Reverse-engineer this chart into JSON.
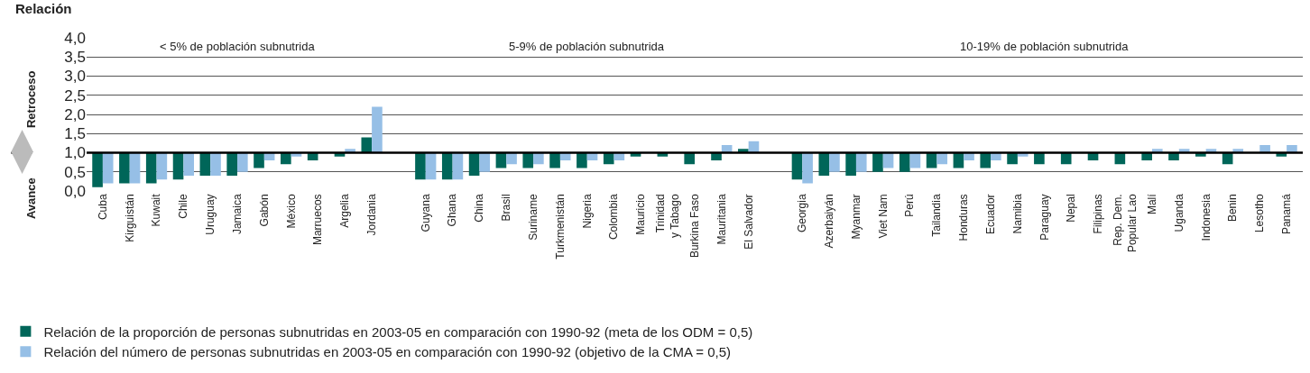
{
  "chart_data": {
    "type": "bar",
    "ylabel": "Relación",
    "categories": [
      "Cuba",
      "Kirguistán",
      "Kuwait",
      "Chile",
      "Uruguay",
      "Jamaica",
      "Gabón",
      "México",
      "Marruecos",
      "Argelia",
      "Jordania",
      null,
      "Guyana",
      "Ghana",
      "China",
      "Brasil",
      "Suriname",
      "Turkmenistán",
      "Nigeria",
      "Colombia",
      "Mauricio",
      "Trinidad\ny Tabago",
      "Burkina Faso",
      "Mauritania",
      "El Salvador",
      null,
      "Georgia",
      "Azerbaiyán",
      "Myanmar",
      "Viet Nam",
      "Perú",
      "Tailandia",
      "Honduras",
      "Ecuador",
      "Namibia",
      "Paraguay",
      "Nepal",
      "Filipinas",
      "Rep. Dem.\nPopular Lao",
      "Malí",
      "Uganda",
      "Indonesia",
      "Benin",
      "Lesotho",
      "Panamá"
    ],
    "series": [
      {
        "name": "Relación de la proporción de personas subnutridas en 2003-05 en comparación con 1990-92 (meta de los ODM = 0,5)",
        "color": "#006659",
        "base": [
          1,
          1,
          1,
          1,
          1,
          1,
          1,
          1,
          1,
          1,
          1,
          null,
          1,
          1,
          1,
          1,
          1,
          1,
          1,
          1,
          1,
          1,
          1,
          1,
          1,
          null,
          1,
          1,
          1,
          1,
          1,
          1,
          1,
          1,
          1,
          1,
          1,
          1,
          1,
          1,
          1,
          1,
          1,
          null,
          1
        ],
        "values": [
          -0.9,
          -0.8,
          -0.8,
          -0.7,
          -0.6,
          -0.6,
          -0.4,
          -0.3,
          -0.2,
          -0.1,
          0.4,
          null,
          -0.7,
          -0.7,
          -0.6,
          -0.4,
          -0.4,
          -0.4,
          -0.4,
          -0.3,
          -0.1,
          -0.1,
          -0.3,
          -0.2,
          0.1,
          null,
          -0.7,
          -0.6,
          -0.6,
          -0.5,
          -0.5,
          -0.4,
          -0.4,
          -0.4,
          -0.3,
          -0.3,
          -0.3,
          -0.2,
          -0.3,
          -0.2,
          -0.2,
          -0.1,
          -0.3,
          null,
          -0.1
        ]
      },
      {
        "name": "Relación del número de personas subnutridas en 2003-05 en comparación con 1990-92 (objetivo de la CMA = 0,5)",
        "color": "#96bfe6",
        "base": [
          1,
          1,
          1,
          1,
          1,
          1,
          1,
          1,
          null,
          1,
          1,
          null,
          1,
          1,
          1,
          1,
          1,
          1,
          1,
          1,
          null,
          null,
          null,
          1,
          1,
          null,
          1,
          1,
          1,
          1,
          1,
          1,
          1,
          1,
          1,
          null,
          null,
          null,
          null,
          1,
          1,
          1,
          1,
          1,
          1
        ],
        "values": [
          -0.8,
          -0.8,
          -0.7,
          -0.6,
          -0.6,
          -0.5,
          -0.2,
          -0.1,
          null,
          0.1,
          1.2,
          null,
          -0.7,
          -0.7,
          -0.5,
          -0.3,
          -0.3,
          -0.2,
          -0.2,
          -0.2,
          null,
          null,
          null,
          0.2,
          0.3,
          null,
          -0.8,
          -0.5,
          -0.5,
          -0.4,
          -0.4,
          -0.3,
          -0.2,
          -0.2,
          -0.1,
          null,
          null,
          null,
          null,
          0.1,
          0.1,
          0.1,
          0.1,
          0.2,
          0.2
        ]
      }
    ],
    "ylim": [
      0,
      4
    ],
    "yticks": [
      {
        "value": 0,
        "label": "0,0"
      },
      {
        "value": 0.5,
        "label": "0,5"
      },
      {
        "value": 1,
        "label": "1,0"
      },
      {
        "value": 1.5,
        "label": "1,5"
      },
      {
        "value": 2,
        "label": "2,0"
      },
      {
        "value": 2.5,
        "label": "2,5"
      },
      {
        "value": 3,
        "label": "3,0"
      },
      {
        "value": 3.5,
        "label": "3,5"
      },
      {
        "value": 4,
        "label": "4,0"
      }
    ],
    "grid": "y",
    "ref_lines": [
      {
        "axis": "y",
        "value": 1,
        "color": "#000000"
      }
    ],
    "annotations": [
      "< 5% de población subnutrida",
      "5-9% de población subnutrida",
      "10-19% de población subnutrida",
      "Retroceso",
      "Avance"
    ],
    "legend": "bottom"
  }
}
